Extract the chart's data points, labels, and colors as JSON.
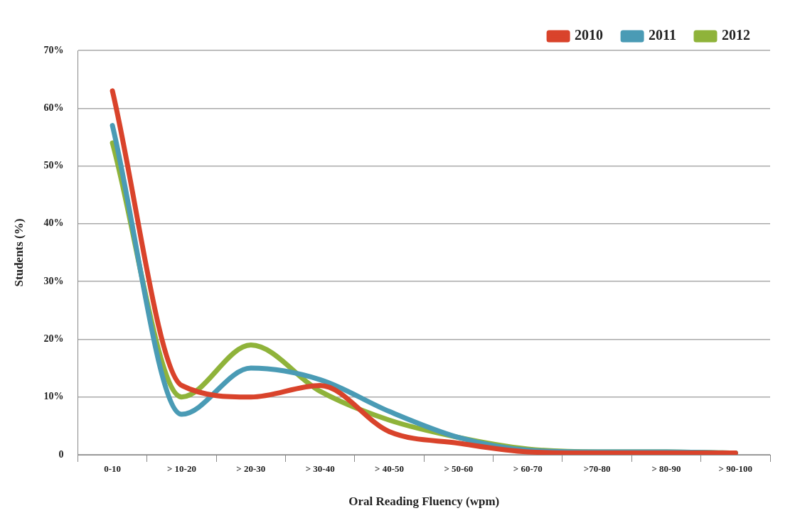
{
  "chart_data": {
    "type": "line",
    "xlabel": "Oral Reading Fluency (wpm)",
    "ylabel": "Students (%)",
    "categories": [
      "0-10",
      "> 10-20",
      "> 20-30",
      "> 30-40",
      "> 40-50",
      "> 50-60",
      "> 60-70",
      ">70-80",
      "> 80-90",
      "> 90-100"
    ],
    "series": [
      {
        "name": "2010",
        "color": "#d9432b",
        "values": [
          63,
          12,
          10,
          12,
          4,
          2,
          0.5,
          0.3,
          0.3,
          0.3
        ]
      },
      {
        "name": "2011",
        "color": "#4a9bb5",
        "values": [
          57,
          7,
          15,
          13,
          7.5,
          3,
          0.8,
          0.5,
          0.5,
          0.3
        ]
      },
      {
        "name": "2012",
        "color": "#8fb33a",
        "values": [
          54,
          10,
          19,
          11,
          6,
          3,
          1,
          0.5,
          0.5,
          0.3
        ]
      }
    ],
    "ylim": [
      0,
      70
    ],
    "yticks": [
      0,
      {
        "value": 10,
        "label": "10%"
      },
      {
        "value": 20,
        "label": "20%"
      },
      {
        "value": 30,
        "label": "30%"
      },
      {
        "value": 40,
        "label": "40%"
      },
      {
        "value": 50,
        "label": "50%"
      },
      {
        "value": 60,
        "label": "60%"
      },
      {
        "value": 70,
        "label": "70%"
      }
    ],
    "grid": "y",
    "legend": "top right",
    "marker": "none",
    "line_style": "solid"
  }
}
